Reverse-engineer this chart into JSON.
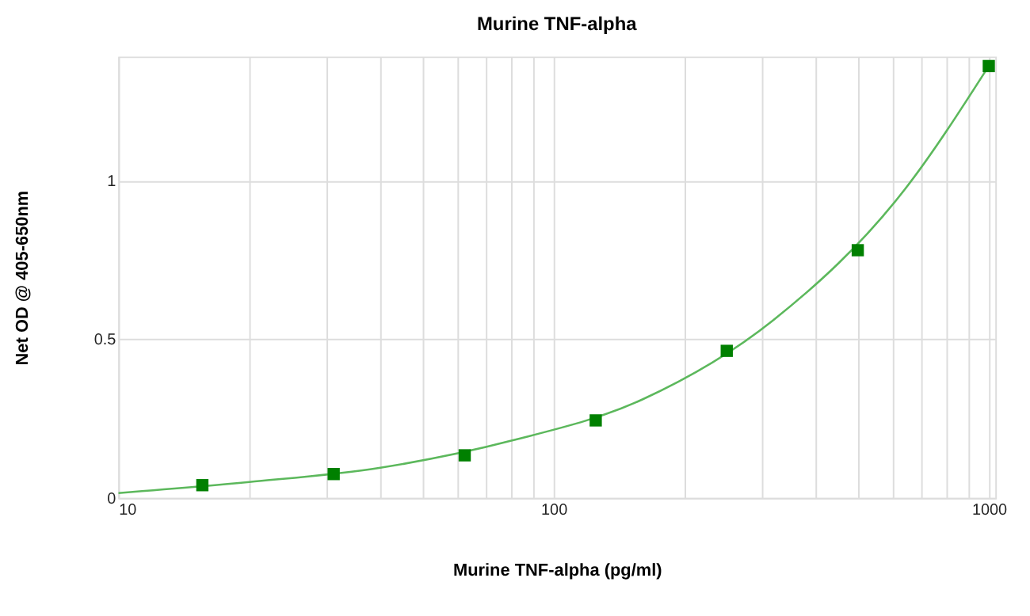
{
  "chart_data": {
    "type": "scatter",
    "title": "Murine TNF-alpha",
    "xlabel": "Murine TNF-alpha (pg/ml)",
    "ylabel": "Net OD @ 405-650nm",
    "log": "x",
    "grid": true,
    "xlim": [
      10,
      1035
    ],
    "ylim": [
      0,
      1.39
    ],
    "xticks": [
      10,
      {
        "value": 20,
        "label": null
      },
      {
        "value": 30,
        "label": null
      },
      {
        "value": 40,
        "label": null
      },
      {
        "value": 50,
        "label": null
      },
      {
        "value": 60,
        "label": null
      },
      {
        "value": 70,
        "label": null
      },
      {
        "value": 80,
        "label": null
      },
      {
        "value": 90,
        "label": null
      },
      100,
      {
        "value": 200,
        "label": null
      },
      {
        "value": 300,
        "label": null
      },
      {
        "value": 400,
        "label": null
      },
      {
        "value": 500,
        "label": null
      },
      {
        "value": 600,
        "label": null
      },
      {
        "value": 700,
        "label": null
      },
      {
        "value": 800,
        "label": null
      },
      {
        "value": 900,
        "label": null
      },
      1000
    ],
    "yticks": [
      0,
      0.5,
      1
    ],
    "series": [
      {
        "type": "line",
        "color": "#5cb85c",
        "marker": "none",
        "line_style": "solid",
        "x": [
          10,
          20,
          40,
          80,
          160,
          320,
          640,
          1000
        ],
        "values": [
          0.015,
          0.05,
          0.095,
          0.18,
          0.31,
          0.56,
          0.97,
          1.36
        ]
      },
      {
        "color": "#008000",
        "marker": "square",
        "x": [
          15.6,
          31.25,
          62.5,
          125,
          250,
          500,
          1000
        ],
        "values": [
          0.04,
          0.075,
          0.134,
          0.244,
          0.463,
          0.78,
          1.36
        ]
      }
    ]
  }
}
